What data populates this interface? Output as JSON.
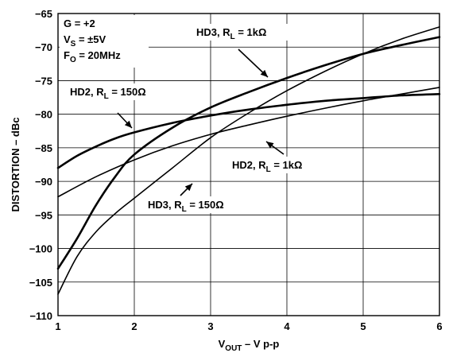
{
  "chart_data": {
    "type": "line",
    "xlabel": {
      "main": "V",
      "sub": "OUT",
      "rest": " – V p-p"
    },
    "ylabel": "DISTORTION – dBc",
    "xlim": [
      1,
      6
    ],
    "ylim": [
      -110,
      -65
    ],
    "xticks": [
      1,
      2,
      3,
      4,
      5,
      6
    ],
    "yticks": [
      -65,
      -70,
      -75,
      -80,
      -85,
      -90,
      -95,
      -100,
      -105,
      -110
    ],
    "grid": true,
    "conditions": [
      {
        "main": "G = +2",
        "sub": "",
        "rest": ""
      },
      {
        "main": "V",
        "sub": "S",
        "rest": " = ±5V"
      },
      {
        "main": "F",
        "sub": "O",
        "rest": " = 20MHz"
      }
    ],
    "series": [
      {
        "name": "HD2, RL = 150Ω",
        "label": {
          "main": "HD2, R",
          "sub": "L",
          "rest": " = 150Ω"
        },
        "x": [
          1,
          1.25,
          1.5,
          1.75,
          2,
          2.5,
          3,
          3.5,
          4,
          4.5,
          5,
          5.5,
          6
        ],
        "y": [
          -88,
          -86.2,
          -84.8,
          -83.6,
          -82.7,
          -81.3,
          -80.2,
          -79.3,
          -78.6,
          -78.0,
          -77.6,
          -77.2,
          -77.0
        ]
      },
      {
        "name": "HD2, RL = 1kΩ",
        "label": {
          "main": "HD2, R",
          "sub": "L",
          "rest": " = 1kΩ"
        },
        "x": [
          1,
          1.5,
          2,
          2.5,
          3,
          3.5,
          4,
          4.5,
          5,
          5.5,
          6
        ],
        "y": [
          -92.3,
          -89.3,
          -86.8,
          -84.7,
          -83.0,
          -81.6,
          -80.3,
          -79.1,
          -78.0,
          -77.0,
          -76.0
        ]
      },
      {
        "name": "HD3, RL = 1kΩ",
        "label": {
          "main": "HD3, R",
          "sub": "L",
          "rest": " = 1kΩ"
        },
        "x": [
          1,
          1.25,
          1.5,
          1.75,
          2,
          2.5,
          3,
          3.5,
          4,
          4.5,
          5,
          5.5,
          6
        ],
        "y": [
          -103,
          -98.5,
          -93.5,
          -89.3,
          -86.0,
          -82.0,
          -79.0,
          -76.7,
          -74.6,
          -72.7,
          -71.0,
          -69.7,
          -68.5
        ]
      },
      {
        "name": "HD3, RL = 150Ω",
        "label": {
          "main": "HD3, R",
          "sub": "L",
          "rest": " = 150Ω"
        },
        "x": [
          1,
          1.25,
          1.5,
          1.75,
          2,
          2.5,
          3,
          3.5,
          4,
          4.5,
          5,
          5.5,
          6
        ],
        "y": [
          -106.8,
          -101.2,
          -97.5,
          -94.8,
          -92.5,
          -88.0,
          -83.5,
          -79.8,
          -76.5,
          -73.6,
          -71.0,
          -68.8,
          -67.0
        ]
      }
    ]
  }
}
